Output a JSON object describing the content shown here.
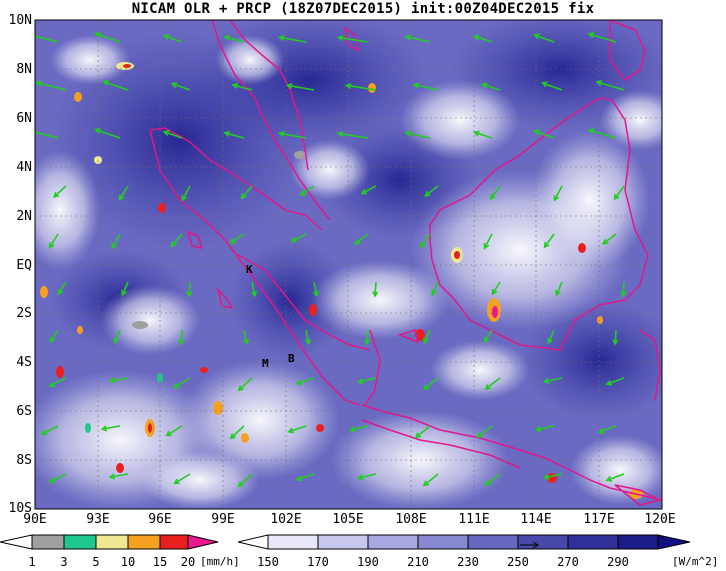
{
  "title": "NICAM OLR + PRCP (18Z07DEC2015) init:00Z04DEC2015 fix",
  "map": {
    "lat_labels": [
      "10N",
      "8N",
      "6N",
      "4N",
      "2N",
      "EQ",
      "2S",
      "4S",
      "6S",
      "8S",
      "10S"
    ],
    "lon_labels": [
      "90E",
      "93E",
      "96E",
      "99E",
      "102E",
      "105E",
      "108E",
      "111E",
      "114E",
      "117E",
      "120E"
    ],
    "place_labels": [
      "K",
      "M",
      "B"
    ],
    "coastline_color": "#e0188c",
    "wind_vector_color": "#22cc22"
  },
  "legend": {
    "precip": {
      "labels": [
        "1",
        "3",
        "5",
        "10",
        "15",
        "20"
      ],
      "unit": "[mm/h]",
      "colors": [
        "#a0a0a0",
        "#1ec88c",
        "#f0e890",
        "#f5a020",
        "#e82020",
        "#e81890"
      ]
    },
    "olr": {
      "labels": [
        "150",
        "170",
        "190",
        "210",
        "230",
        "250",
        "270",
        "290"
      ],
      "unit": "[W/m^2]",
      "colors": [
        "#ffffff",
        "#e8e8f8",
        "#c8c8ee",
        "#a8a8e0",
        "#8888d0",
        "#6868c0",
        "#4848a8",
        "#303098",
        "#1c1c88",
        "#101080"
      ]
    }
  }
}
